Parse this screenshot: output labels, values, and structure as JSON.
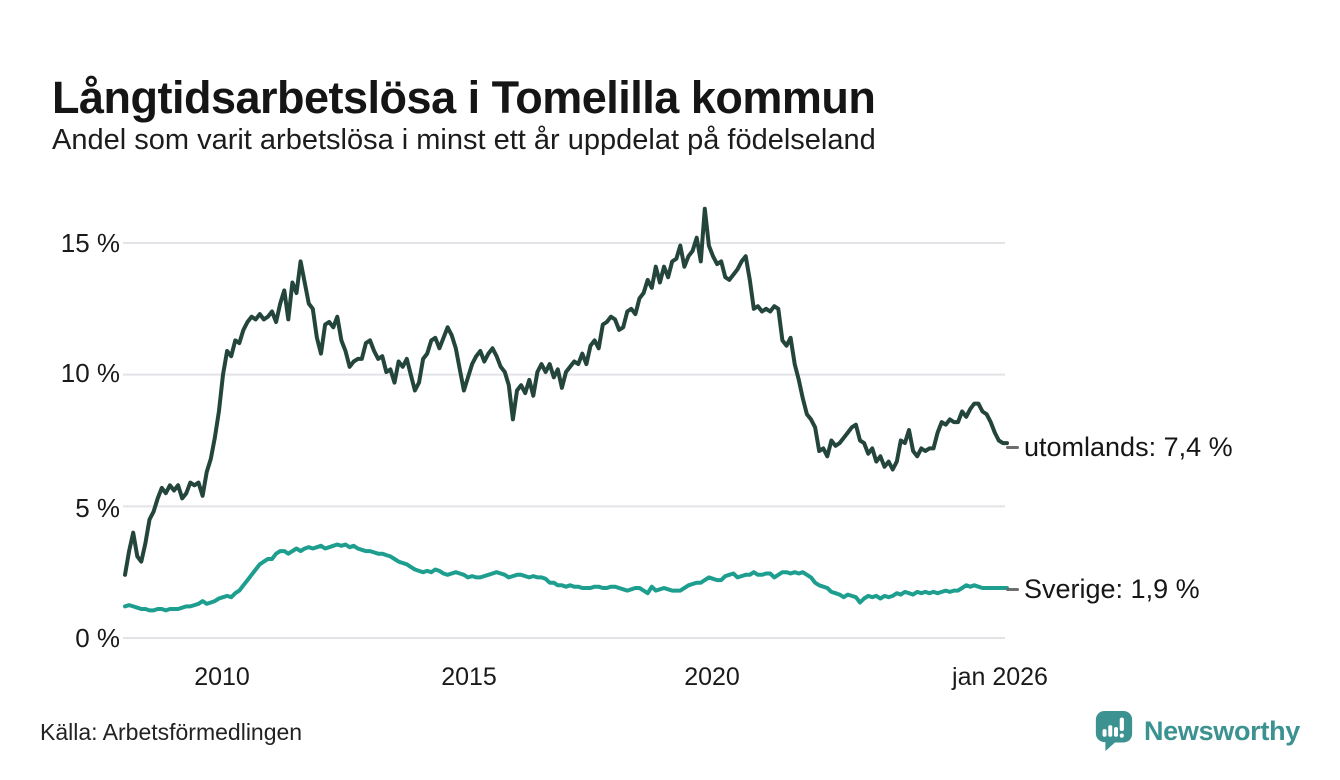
{
  "title": "Långtidsarbetslösa i Tomelilla kommun",
  "subtitle": "Andel som varit arbetslösa i minst ett år uppdelat på födelseland",
  "source": "Källa: Arbetsförmedlingen",
  "brand": {
    "name": "Newsworthy",
    "color": "#3b9290",
    "icon": "newsworthy-speech-bubble-bar-chart-icon"
  },
  "chart_data": {
    "type": "line",
    "title": "Långtidsarbetslösa i Tomelilla kommun",
    "subtitle": "Andel som varit arbetslösa i minst ett år uppdelat på födelseland",
    "unit": "%",
    "grid": "horizontal",
    "grid_color": "#e3e3e8",
    "xlim": [
      2008.0,
      2026.08
    ],
    "ylim": [
      0,
      16.5
    ],
    "x_start_year": 2008.0,
    "x_step_years": 0.083333,
    "x_ticks": [
      {
        "label": "2010",
        "year": 2010
      },
      {
        "label": "2015",
        "year": 2015
      },
      {
        "label": "2020",
        "year": 2020
      },
      {
        "label": "jan 2026",
        "year": 2026.04
      }
    ],
    "y_ticks": [
      {
        "label": "15 %",
        "value": 15
      },
      {
        "label": "10 %",
        "value": 10
      },
      {
        "label": "5 %",
        "value": 5
      },
      {
        "label": "0 %",
        "value": 0
      }
    ],
    "legend_position": "end-of-line-labels",
    "series": [
      {
        "name": "utomlands",
        "label": "utomlands: 7,4 %",
        "last_value": 7.4,
        "color": "#24453c",
        "values": [
          2.4,
          3.3,
          4.0,
          3.1,
          2.9,
          3.6,
          4.5,
          4.8,
          5.3,
          5.7,
          5.5,
          5.8,
          5.6,
          5.8,
          5.3,
          5.5,
          5.9,
          5.8,
          5.9,
          5.4,
          6.3,
          6.8,
          7.6,
          8.6,
          10.0,
          10.9,
          10.7,
          11.3,
          11.2,
          11.7,
          12.0,
          12.2,
          12.1,
          12.3,
          12.1,
          12.2,
          12.4,
          12.0,
          12.7,
          13.2,
          12.1,
          13.5,
          13.1,
          14.3,
          13.5,
          12.7,
          12.5,
          11.4,
          10.8,
          11.9,
          12.0,
          11.8,
          12.2,
          11.3,
          10.9,
          10.3,
          10.5,
          10.6,
          10.6,
          11.2,
          11.3,
          10.9,
          10.6,
          10.7,
          10.1,
          10.2,
          9.7,
          10.5,
          10.3,
          10.6,
          10.0,
          9.4,
          9.7,
          10.6,
          10.8,
          11.3,
          11.4,
          11.0,
          11.4,
          11.8,
          11.5,
          11.0,
          10.2,
          9.4,
          9.9,
          10.4,
          10.7,
          10.9,
          10.5,
          10.8,
          11.0,
          10.7,
          10.3,
          10.1,
          9.6,
          8.3,
          9.4,
          9.6,
          9.3,
          9.8,
          9.2,
          10.1,
          10.4,
          10.1,
          10.4,
          9.9,
          10.2,
          9.5,
          10.1,
          10.3,
          10.5,
          10.4,
          10.8,
          10.4,
          11.1,
          11.3,
          11.0,
          11.9,
          12.0,
          12.2,
          12.1,
          11.7,
          11.8,
          12.4,
          12.5,
          12.3,
          12.9,
          13.1,
          13.6,
          13.3,
          14.1,
          13.5,
          14.1,
          13.7,
          14.3,
          14.4,
          14.9,
          14.1,
          14.5,
          14.7,
          15.2,
          14.3,
          16.3,
          14.9,
          14.5,
          14.2,
          14.3,
          13.7,
          13.6,
          13.8,
          14.0,
          14.3,
          14.5,
          13.6,
          12.5,
          12.6,
          12.4,
          12.5,
          12.4,
          12.6,
          12.5,
          11.3,
          11.1,
          11.4,
          10.4,
          9.8,
          9.1,
          8.5,
          8.3,
          8.0,
          7.1,
          7.2,
          6.9,
          7.5,
          7.3,
          7.4,
          7.6,
          7.8,
          8.0,
          8.1,
          7.5,
          7.4,
          7.0,
          7.2,
          6.7,
          6.9,
          6.5,
          6.7,
          6.4,
          6.7,
          7.5,
          7.4,
          7.9,
          7.1,
          6.9,
          7.2,
          7.1,
          7.2,
          7.2,
          7.8,
          8.2,
          8.1,
          8.3,
          8.2,
          8.2,
          8.6,
          8.4,
          8.7,
          8.9,
          8.9,
          8.6,
          8.5,
          8.2,
          7.8,
          7.5,
          7.4,
          7.4
        ]
      },
      {
        "name": "Sverige",
        "label": "Sverige: 1,9 %",
        "last_value": 1.9,
        "color": "#1d9e8f",
        "values": [
          1.2,
          1.25,
          1.2,
          1.15,
          1.1,
          1.1,
          1.05,
          1.05,
          1.1,
          1.1,
          1.05,
          1.1,
          1.1,
          1.1,
          1.15,
          1.2,
          1.2,
          1.25,
          1.3,
          1.4,
          1.3,
          1.35,
          1.4,
          1.5,
          1.55,
          1.6,
          1.55,
          1.7,
          1.8,
          2.0,
          2.2,
          2.4,
          2.6,
          2.8,
          2.9,
          3.0,
          3.0,
          3.2,
          3.3,
          3.3,
          3.2,
          3.3,
          3.4,
          3.3,
          3.4,
          3.45,
          3.4,
          3.45,
          3.5,
          3.4,
          3.45,
          3.5,
          3.55,
          3.5,
          3.55,
          3.45,
          3.5,
          3.4,
          3.35,
          3.3,
          3.3,
          3.25,
          3.2,
          3.2,
          3.15,
          3.1,
          3.0,
          2.9,
          2.85,
          2.8,
          2.7,
          2.6,
          2.55,
          2.5,
          2.55,
          2.5,
          2.6,
          2.55,
          2.45,
          2.4,
          2.45,
          2.5,
          2.45,
          2.4,
          2.3,
          2.35,
          2.3,
          2.3,
          2.35,
          2.4,
          2.45,
          2.5,
          2.45,
          2.4,
          2.3,
          2.35,
          2.4,
          2.4,
          2.35,
          2.3,
          2.35,
          2.3,
          2.3,
          2.25,
          2.1,
          2.1,
          2.0,
          2.0,
          1.95,
          2.0,
          1.95,
          1.95,
          1.9,
          1.9,
          1.9,
          1.95,
          1.95,
          1.9,
          1.9,
          1.95,
          1.95,
          1.9,
          1.85,
          1.8,
          1.85,
          1.9,
          1.9,
          1.8,
          1.7,
          1.95,
          1.8,
          1.85,
          1.9,
          1.85,
          1.8,
          1.8,
          1.8,
          1.9,
          2.0,
          2.05,
          2.1,
          2.1,
          2.2,
          2.3,
          2.25,
          2.2,
          2.2,
          2.35,
          2.4,
          2.45,
          2.3,
          2.35,
          2.4,
          2.4,
          2.5,
          2.4,
          2.4,
          2.45,
          2.45,
          2.3,
          2.4,
          2.5,
          2.5,
          2.45,
          2.5,
          2.45,
          2.5,
          2.4,
          2.3,
          2.1,
          2.0,
          1.95,
          1.9,
          1.75,
          1.7,
          1.65,
          1.55,
          1.65,
          1.6,
          1.55,
          1.35,
          1.5,
          1.6,
          1.55,
          1.6,
          1.5,
          1.6,
          1.55,
          1.6,
          1.7,
          1.65,
          1.75,
          1.7,
          1.65,
          1.75,
          1.7,
          1.75,
          1.7,
          1.75,
          1.7,
          1.75,
          1.8,
          1.75,
          1.8,
          1.8,
          1.9,
          2.0,
          1.95,
          2.0,
          1.95,
          1.9,
          1.9,
          1.9,
          1.9,
          1.9,
          1.9,
          1.9
        ]
      }
    ]
  }
}
